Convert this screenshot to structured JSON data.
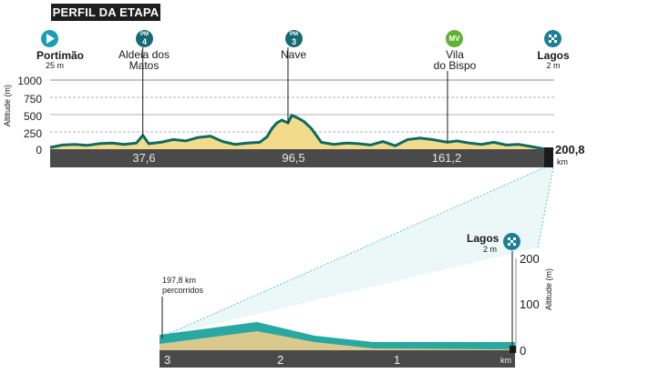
{
  "title": "PERFIL DA ETAPA",
  "main_profile": {
    "y_axis_label": "Altitude (m)",
    "y_ticks": [
      "1000",
      "750",
      "500",
      "250",
      "0"
    ],
    "km_ticks": [
      "37,6",
      "96,5",
      "161,2"
    ],
    "total_distance": "200,8",
    "distance_unit": "km",
    "waypoints": [
      {
        "name": "Portimão",
        "altitude": "25 m",
        "marker": "start-flag"
      },
      {
        "name": "Aldeia dos Matos",
        "name_line1": "Aldeia dos",
        "name_line2": "Matos",
        "marker_top": "PM",
        "marker_num": "4"
      },
      {
        "name": "Nave",
        "marker_top": "PM",
        "marker_num": "3"
      },
      {
        "name": "Vila do Bispo",
        "name_line1": "Vila",
        "name_line2": "do Bispo",
        "marker": "MV"
      },
      {
        "name": "Lagos",
        "altitude": "2 m",
        "marker": "finish-flag"
      }
    ]
  },
  "zoom_profile": {
    "y_axis_label": "Altitude (m)",
    "y_ticks": [
      "200",
      "100",
      "0"
    ],
    "km_ticks": [
      "3",
      "2",
      "1",
      "km"
    ],
    "note_line1": "197,8 km",
    "note_line2": "percorridos",
    "finish": {
      "name": "Lagos",
      "altitude": "2 m"
    }
  },
  "colors": {
    "title_bg": "#1e1e1e",
    "terrain_fill": "#f2dc8c",
    "profile_line": "#0c6b62",
    "road_band": "#4a4a4a",
    "zoom_surface": "#27a8a0",
    "zoom_earth": "#d9c98e",
    "start_marker": "#17a0b3",
    "climb_marker": "#156b74",
    "sprint_marker": "#5fb233",
    "finish_marker": "#1c7f95"
  },
  "chart_data": {
    "type": "area",
    "title": "PERFIL DA ETAPA",
    "ylabel": "Altitude (m)",
    "xlabel": "",
    "ylim": [
      0,
      1000
    ],
    "xlim": [
      0,
      200.8
    ],
    "grid": true,
    "x": [
      0,
      5,
      10,
      15,
      20,
      25,
      30,
      35,
      37.6,
      40,
      45,
      50,
      55,
      60,
      65,
      70,
      75,
      80,
      85,
      88,
      90,
      92,
      94,
      96.5,
      98,
      100,
      103,
      106,
      110,
      115,
      120,
      125,
      130,
      135,
      140,
      145,
      150,
      155,
      161.2,
      165,
      170,
      175,
      180,
      185,
      190,
      195,
      200.8
    ],
    "y": [
      25,
      60,
      70,
      55,
      80,
      90,
      70,
      90,
      200,
      80,
      100,
      140,
      120,
      170,
      190,
      110,
      70,
      90,
      100,
      180,
      300,
      380,
      420,
      380,
      490,
      460,
      400,
      300,
      100,
      70,
      90,
      80,
      60,
      110,
      50,
      140,
      160,
      140,
      100,
      120,
      90,
      70,
      100,
      60,
      70,
      40,
      2
    ]
  }
}
